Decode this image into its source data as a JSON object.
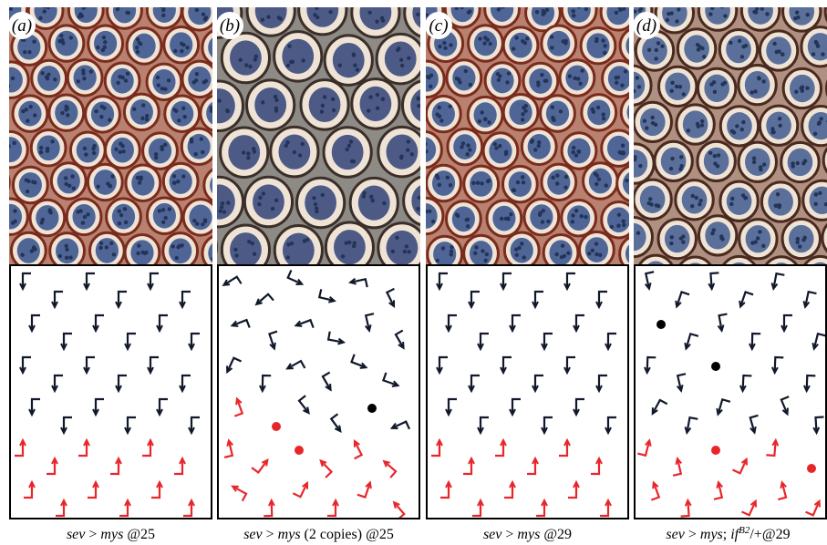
{
  "panels": [
    {
      "label": "(a)",
      "caption": [
        {
          "text": "sev",
          "italic": true
        },
        {
          "text": " > "
        },
        {
          "text": "mys",
          "italic": true
        },
        {
          "text": " @25"
        }
      ]
    },
    {
      "label": "(b)",
      "caption": [
        {
          "text": "sev",
          "italic": true
        },
        {
          "text": " > "
        },
        {
          "text": "mys",
          "italic": true
        },
        {
          "text": " (2 copies) @25"
        }
      ]
    },
    {
      "label": "(c)",
      "caption": [
        {
          "text": "sev",
          "italic": true
        },
        {
          "text": " > "
        },
        {
          "text": "mys",
          "italic": true
        },
        {
          "text": " @29"
        }
      ]
    },
    {
      "label": "(d)",
      "caption": [
        {
          "text": "sev",
          "italic": true
        },
        {
          "text": " > "
        },
        {
          "text": "mys",
          "italic": true
        },
        {
          "text": "; "
        },
        {
          "text": "if",
          "italic": true
        },
        {
          "text": "B2",
          "italic": true,
          "sup": true
        },
        {
          "text": "/+@29"
        }
      ]
    }
  ]
}
